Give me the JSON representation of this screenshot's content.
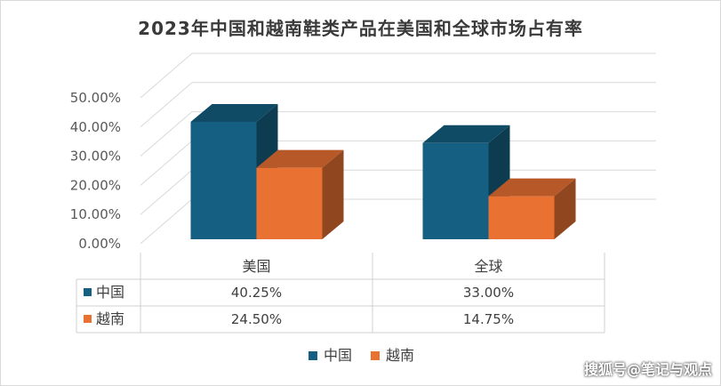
{
  "title": "2023年中国和越南鞋类产品在美国和全球市场占有率",
  "watermark": "搜狐号@笔记与观点",
  "chart_data": {
    "type": "bar",
    "title": "2023年中国和越南鞋类产品在美国和全球市场占有率",
    "categories": [
      "美国",
      "全球"
    ],
    "series": [
      {
        "name": "中国",
        "values": [
          40.25,
          33.0
        ],
        "labels": [
          "40.25%",
          "33.00%"
        ],
        "color": "#156082"
      },
      {
        "name": "越南",
        "values": [
          24.5,
          14.75
        ],
        "labels": [
          "24.50%",
          "14.75%"
        ],
        "color": "#E97132"
      }
    ],
    "y_ticks": [
      "0.00%",
      "10.00%",
      "20.00%",
      "30.00%",
      "40.00%",
      "50.00%"
    ],
    "ylim": [
      0,
      50
    ],
    "grid": true,
    "style": "3d-clustered-column",
    "data_table": true,
    "legend_position": "bottom"
  }
}
